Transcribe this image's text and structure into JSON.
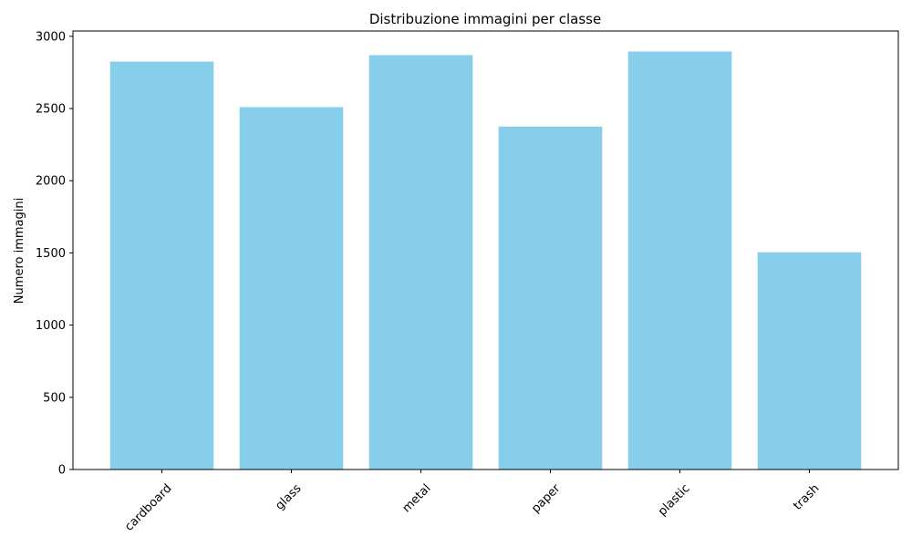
{
  "chart_data": {
    "type": "bar",
    "title": "Distribuzione immagini per classe",
    "xlabel": "",
    "ylabel": "Numero immagini",
    "categories": [
      "cardboard",
      "glass",
      "metal",
      "paper",
      "plastic",
      "trash"
    ],
    "values": [
      2825,
      2510,
      2870,
      2375,
      2895,
      1505
    ],
    "ylim": [
      0,
      3037
    ],
    "yticks": [
      0,
      500,
      1000,
      1500,
      2000,
      2500,
      3000
    ],
    "grid": false,
    "colors": {
      "bar": "#87ceeb",
      "axis": "#000000",
      "background": "#ffffff"
    }
  }
}
